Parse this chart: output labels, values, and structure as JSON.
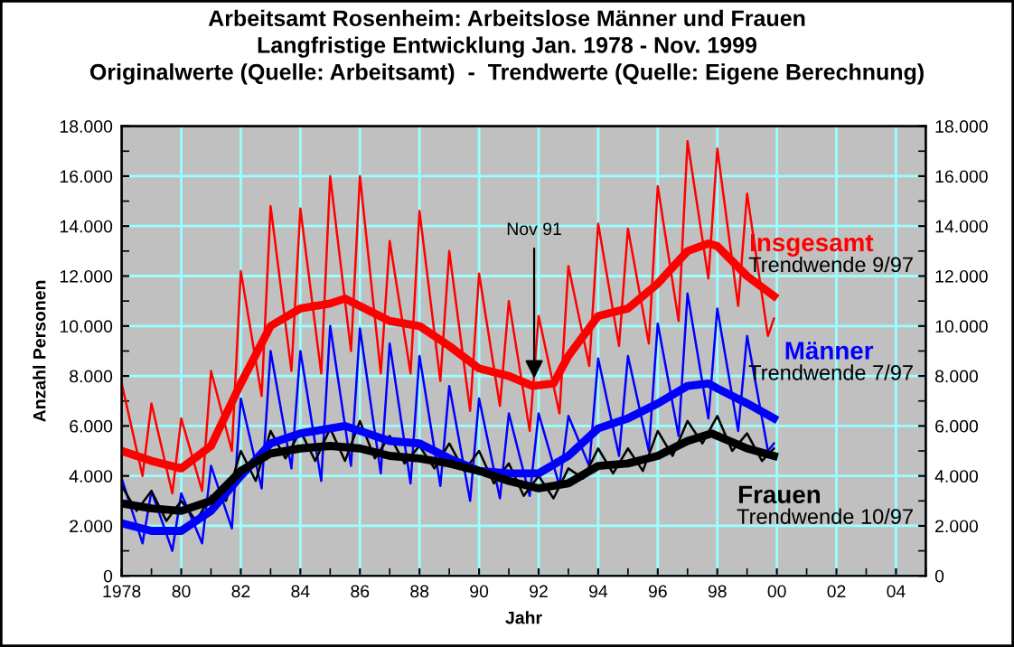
{
  "chart_data": {
    "type": "line",
    "title": "Arbeitsamt Rosenheim: Arbeitslose Männer und Frauen\nLangfristige Entwicklung Jan. 1978 - Nov. 1999\nOriginalwerte (Quelle: Arbeitsamt)  -  Trendwerte (Quelle: Eigene Berechnung)",
    "xlabel": "Jahr",
    "ylabel": "Anzahl Personen",
    "xlim": [
      1978,
      2005
    ],
    "xticks": [
      {
        "value": 1978,
        "label": "1978"
      },
      {
        "value": 1980,
        "label": "80"
      },
      {
        "value": 1982,
        "label": "82"
      },
      {
        "value": 1984,
        "label": "84"
      },
      {
        "value": 1986,
        "label": "86"
      },
      {
        "value": 1988,
        "label": "88"
      },
      {
        "value": 1990,
        "label": "90"
      },
      {
        "value": 1992,
        "label": "92"
      },
      {
        "value": 1994,
        "label": "94"
      },
      {
        "value": 1996,
        "label": "96"
      },
      {
        "value": 1998,
        "label": "98"
      },
      {
        "value": 2000,
        "label": "00"
      },
      {
        "value": 2002,
        "label": "02"
      },
      {
        "value": 2004,
        "label": "04"
      }
    ],
    "ylim": [
      0,
      18000
    ],
    "yticks": [
      0,
      {
        "value": 2000,
        "label": "2.000"
      },
      {
        "value": 4000,
        "label": "4.000"
      },
      {
        "value": 6000,
        "label": "6.000"
      },
      {
        "value": 8000,
        "label": "8.000"
      },
      {
        "value": 10000,
        "label": "10.000"
      },
      {
        "value": 12000,
        "label": "12.000"
      },
      {
        "value": 14000,
        "label": "14.000"
      },
      {
        "value": 16000,
        "label": "16.000"
      },
      {
        "value": 18000,
        "label": "18.000"
      }
    ],
    "y2lim": [
      0,
      18000
    ],
    "y2ticks": [
      0,
      {
        "value": 2000,
        "label": "2.000"
      },
      {
        "value": 4000,
        "label": "4.000"
      },
      {
        "value": 6000,
        "label": "6.000"
      },
      {
        "value": 8000,
        "label": "8.000"
      },
      {
        "value": 10000,
        "label": "10.000"
      },
      {
        "value": 12000,
        "label": "12.000"
      },
      {
        "value": 14000,
        "label": "14.000"
      },
      {
        "value": 16000,
        "label": "16.000"
      },
      {
        "value": 18000,
        "label": "18.000"
      }
    ],
    "grid": true,
    "legend": false,
    "marker": "none",
    "line_style": "solid",
    "series": [
      {
        "color": "#ff0000",
        "x": [
          1978.0,
          1978.7,
          1979.0,
          1979.7,
          1980.0,
          1980.7,
          1981.0,
          1981.7,
          1982.0,
          1982.7,
          1983.0,
          1983.7,
          1984.0,
          1984.7,
          1985.0,
          1985.7,
          1986.0,
          1986.7,
          1987.0,
          1987.7,
          1988.0,
          1988.7,
          1989.0,
          1989.7,
          1990.0,
          1990.7,
          1991.0,
          1991.7,
          1992.0,
          1992.7,
          1993.0,
          1993.7,
          1994.0,
          1994.7,
          1995.0,
          1995.7,
          1996.0,
          1996.7,
          1997.0,
          1997.7,
          1998.0,
          1998.7,
          1999.0,
          1999.7,
          1999.9
        ],
        "values": [
          7700,
          4000,
          6900,
          3300,
          6300,
          3400,
          8200,
          5000,
          12200,
          7200,
          14800,
          8200,
          14700,
          8100,
          16000,
          9000,
          16000,
          8100,
          13400,
          8100,
          14600,
          7800,
          13000,
          6600,
          12100,
          6800,
          11000,
          5800,
          10400,
          6500,
          12400,
          8400,
          14100,
          9200,
          13900,
          9300,
          15600,
          10200,
          17400,
          11900,
          17100,
          10800,
          15300,
          9600,
          10300
        ]
      },
      {
        "name": "Insgesamt",
        "color": "#ff0000",
        "x": [
          1978,
          1979,
          1980,
          1981,
          1982,
          1983,
          1984,
          1985,
          1985.5,
          1986,
          1987,
          1988,
          1989,
          1990,
          1991,
          1991.8,
          1992.5,
          1993,
          1994,
          1995,
          1996,
          1997,
          1997.7,
          1998,
          1999,
          1999.9
        ],
        "values": [
          5000,
          4600,
          4300,
          5200,
          7700,
          10000,
          10700,
          10900,
          11100,
          10800,
          10200,
          10000,
          9200,
          8300,
          8000,
          7600,
          7700,
          8800,
          10400,
          10700,
          11700,
          13000,
          13300,
          13200,
          12000,
          11200
        ]
      },
      {
        "color": "#0000ff",
        "x": [
          1978.0,
          1978.7,
          1979.0,
          1979.7,
          1980.0,
          1980.7,
          1981.0,
          1981.7,
          1982.0,
          1982.7,
          1983.0,
          1983.7,
          1984.0,
          1984.7,
          1985.0,
          1985.7,
          1986.0,
          1986.7,
          1987.0,
          1987.7,
          1988.0,
          1988.7,
          1989.0,
          1989.7,
          1990.0,
          1990.7,
          1991.0,
          1991.7,
          1992.0,
          1992.7,
          1993.0,
          1993.7,
          1994.0,
          1994.7,
          1995.0,
          1995.7,
          1996.0,
          1996.7,
          1997.0,
          1997.7,
          1998.0,
          1998.7,
          1999.0,
          1999.7,
          1999.9
        ],
        "values": [
          3900,
          1300,
          3400,
          1000,
          3300,
          1300,
          4400,
          1900,
          7100,
          3500,
          9000,
          4300,
          9000,
          3800,
          10000,
          4400,
          9900,
          4100,
          9300,
          3700,
          8800,
          3600,
          7600,
          3000,
          7100,
          3100,
          6500,
          3200,
          6500,
          3600,
          6400,
          4400,
          8700,
          4800,
          8800,
          5000,
          10100,
          5600,
          11300,
          6300,
          10700,
          5800,
          9600,
          5000,
          5300
        ]
      },
      {
        "name": "Männer",
        "color": "#0000ff",
        "x": [
          1978,
          1979,
          1980,
          1981,
          1982,
          1983,
          1984,
          1985,
          1985.5,
          1986,
          1987,
          1988,
          1989,
          1990,
          1991,
          1992,
          1993,
          1994,
          1995,
          1996,
          1997,
          1997.7,
          1998,
          1999,
          1999.9
        ],
        "values": [
          2100,
          1800,
          1800,
          2600,
          4000,
          5300,
          5700,
          5900,
          6000,
          5800,
          5400,
          5300,
          4700,
          4200,
          4100,
          4100,
          4800,
          5900,
          6300,
          6900,
          7600,
          7700,
          7500,
          6900,
          6300
        ]
      },
      {
        "color": "#000000",
        "x": [
          1978.0,
          1978.5,
          1979.0,
          1979.5,
          1980.0,
          1980.5,
          1981.0,
          1981.5,
          1982.0,
          1982.5,
          1983.0,
          1983.5,
          1984.0,
          1984.5,
          1985.0,
          1985.5,
          1986.0,
          1986.5,
          1987.0,
          1987.5,
          1988.0,
          1988.5,
          1989.0,
          1989.5,
          1990.0,
          1990.5,
          1991.0,
          1991.5,
          1992.0,
          1992.5,
          1993.0,
          1993.5,
          1994.0,
          1994.5,
          1995.0,
          1995.5,
          1996.0,
          1996.5,
          1997.0,
          1997.5,
          1998.0,
          1998.5,
          1999.0,
          1999.5,
          1999.9
        ],
        "values": [
          3600,
          2600,
          3400,
          2200,
          3000,
          2200,
          3200,
          3000,
          5000,
          3800,
          5800,
          4700,
          5800,
          4600,
          5900,
          4600,
          6200,
          4700,
          5600,
          4500,
          5200,
          4300,
          5300,
          4200,
          5000,
          3700,
          4500,
          3200,
          4000,
          3100,
          4300,
          3900,
          5100,
          4100,
          5100,
          4200,
          5800,
          4800,
          6200,
          5300,
          6400,
          5000,
          5700,
          4600,
          5100
        ]
      },
      {
        "name": "Frauen",
        "color": "#000000",
        "x": [
          1978,
          1979,
          1980,
          1981,
          1982,
          1983,
          1984,
          1985,
          1986,
          1987,
          1988,
          1989,
          1990,
          1991,
          1992,
          1993,
          1994,
          1995,
          1996,
          1997,
          1997.8,
          1998,
          1999,
          1999.9
        ],
        "values": [
          2900,
          2700,
          2600,
          3000,
          4200,
          4900,
          5100,
          5200,
          5100,
          4800,
          4700,
          4500,
          4200,
          3800,
          3500,
          3700,
          4400,
          4500,
          4800,
          5400,
          5700,
          5600,
          5100,
          4800
        ]
      }
    ],
    "annotations": [
      {
        "text": "Nov 91",
        "x": 1991.85,
        "y": 7700
      },
      "Trendwende 9/97",
      "Trendwende 7/97",
      "Trendwende 10/97"
    ]
  }
}
